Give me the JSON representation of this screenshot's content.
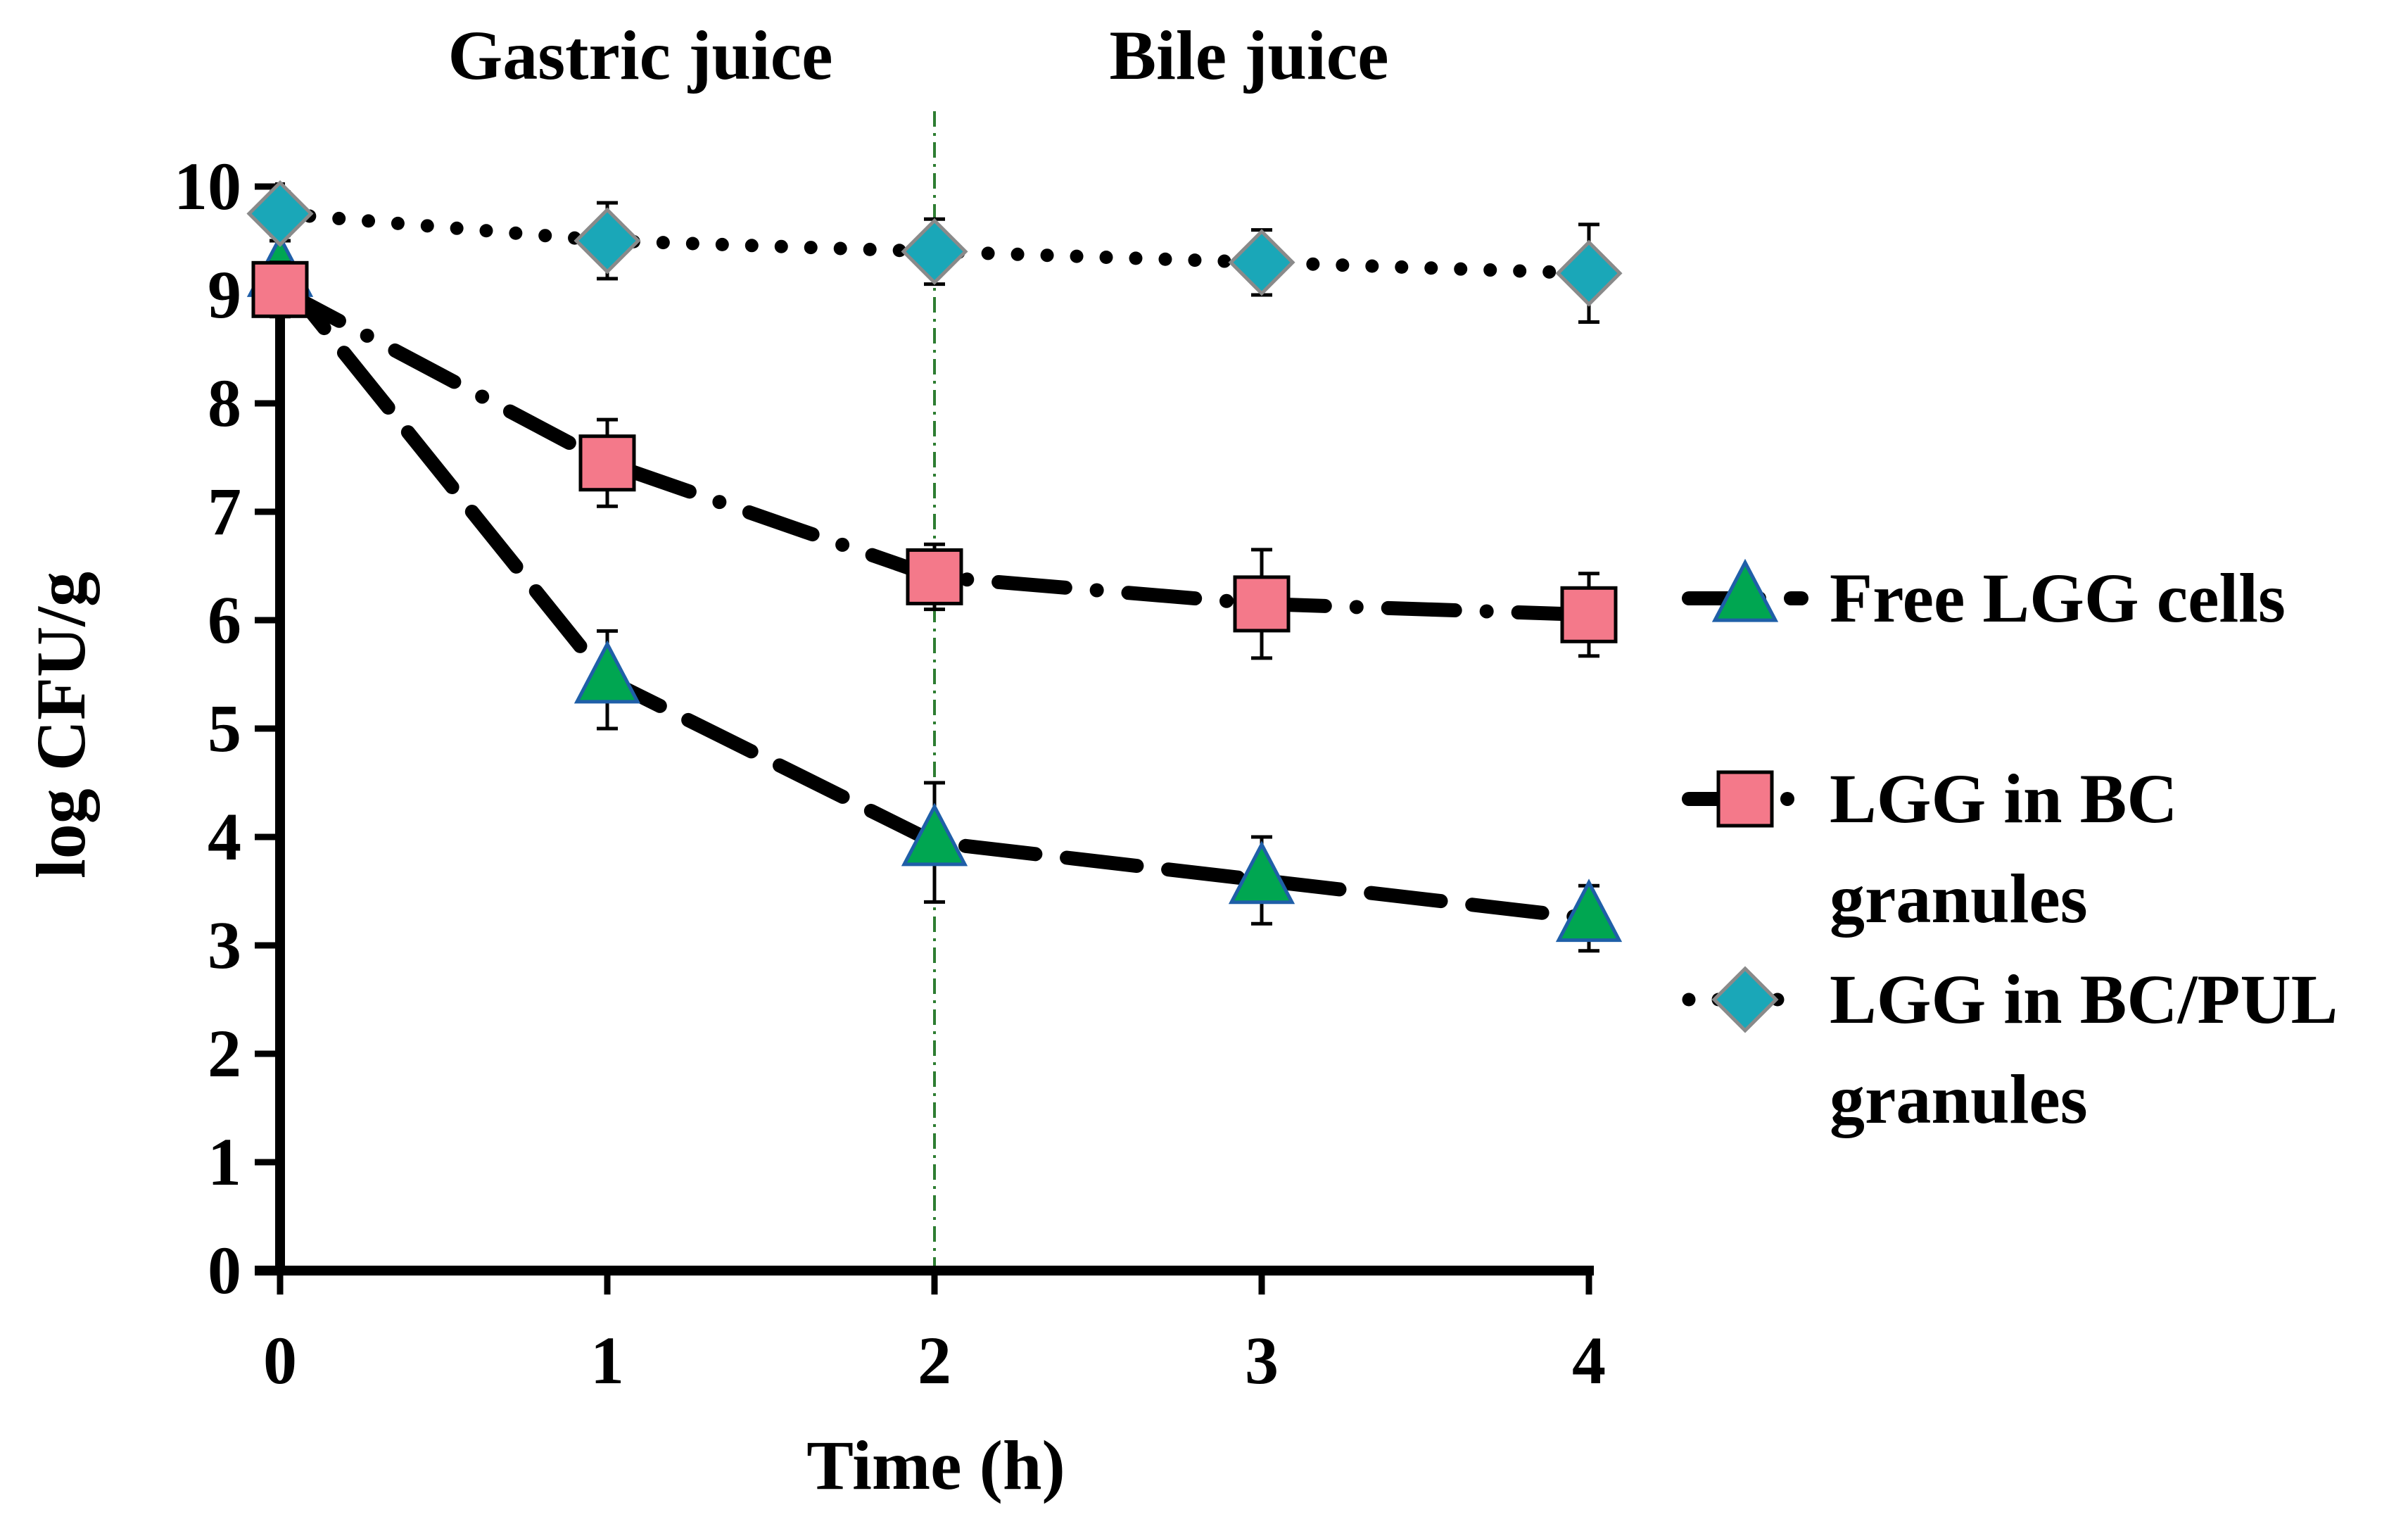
{
  "chart_data": {
    "type": "line",
    "title": "",
    "xlabel": "Time (h)",
    "ylabel": "log CFU/g",
    "x": [
      0,
      1,
      2,
      3,
      4
    ],
    "xlim": [
      0,
      4
    ],
    "ylim": [
      0,
      10
    ],
    "xticks": [
      "0",
      "1",
      "2",
      "3",
      "4"
    ],
    "yticks": [
      "0",
      "1",
      "2",
      "3",
      "4",
      "5",
      "6",
      "7",
      "8",
      "9",
      "10"
    ],
    "grid": false,
    "legend_position": "right",
    "phase_divider_x": 2,
    "annotations": [
      "Gastric juice",
      "Bile juice"
    ],
    "series": [
      {
        "name": "Free LGG cells",
        "legend_lines": [
          "Free LGG cells"
        ],
        "values": [
          9.2,
          5.45,
          3.95,
          3.6,
          3.25
        ],
        "errors": [
          0.3,
          0.45,
          0.55,
          0.4,
          0.3
        ],
        "marker": "triangle",
        "line_style": "long-dash",
        "color": "#00A651",
        "edge_color": "#1F5FA8"
      },
      {
        "name": "LGG in BC granules",
        "legend_lines": [
          "LGG in BC",
          "granules"
        ],
        "values": [
          9.05,
          7.45,
          6.4,
          6.15,
          6.05
        ],
        "errors": [
          0.25,
          0.4,
          0.3,
          0.5,
          0.38
        ],
        "marker": "square",
        "line_style": "dash-dot",
        "color": "#F4798A",
        "edge_color": "#000000"
      },
      {
        "name": "LGG in BC/PUL granules",
        "legend_lines": [
          "LGG in BC/PUL",
          "granules"
        ],
        "values": [
          9.75,
          9.5,
          9.4,
          9.3,
          9.2
        ],
        "errors": [
          0.2,
          0.35,
          0.3,
          0.3,
          0.45
        ],
        "marker": "diamond",
        "line_style": "dotted",
        "color": "#1AA7B8",
        "edge_color": "#8A8A8A"
      }
    ]
  }
}
